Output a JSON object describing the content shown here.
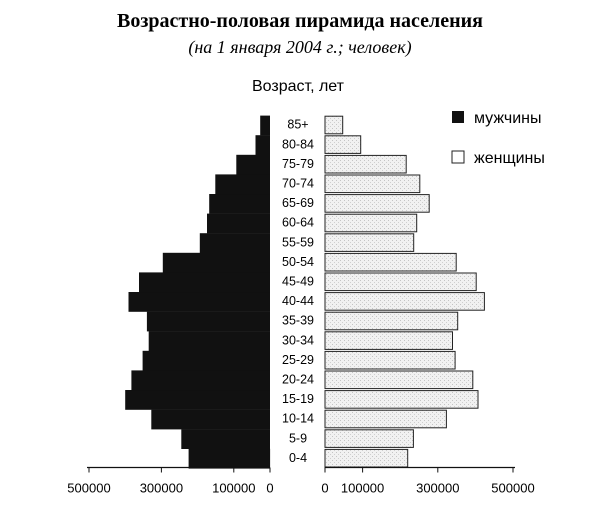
{
  "chart_data": {
    "type": "bar",
    "title": "Возрастно-половая пирамида населения",
    "subtitle": "(на 1 января 2004 г.; человек)",
    "ylabel": "Возраст, лет",
    "categories": [
      "0-4",
      "5-9",
      "10-14",
      "15-19",
      "20-24",
      "25-29",
      "30-34",
      "35-39",
      "40-44",
      "45-49",
      "50-54",
      "55-59",
      "60-64",
      "65-69",
      "70-74",
      "75-79",
      "80-84",
      "85+"
    ],
    "series": [
      {
        "name": "мужчины",
        "color": "#111111",
        "side": "left",
        "values": [
          225000,
          245000,
          328000,
          400000,
          383000,
          352000,
          335000,
          340000,
          391000,
          362000,
          296000,
          194000,
          174000,
          168000,
          151000,
          93000,
          40000,
          27000
        ]
      },
      {
        "name": "женщины",
        "color": "#e9e9e9",
        "side": "right",
        "values": [
          220000,
          235000,
          323000,
          407000,
          393000,
          346000,
          339000,
          353000,
          424000,
          402000,
          349000,
          236000,
          244000,
          277000,
          252000,
          216000,
          95000,
          47000
        ]
      }
    ],
    "left_axis": {
      "ticks": [
        500000,
        300000,
        100000,
        0
      ],
      "tick_labels": [
        "500000",
        "300000",
        "100000",
        "0"
      ],
      "range": [
        0,
        500000
      ]
    },
    "right_axis": {
      "ticks": [
        0,
        100000,
        300000,
        500000
      ],
      "tick_labels": [
        "0",
        "100000",
        "300000",
        "500000"
      ],
      "range": [
        0,
        500000
      ]
    },
    "legend": {
      "placement": "top-right",
      "items": [
        "мужчины",
        "женщины"
      ]
    },
    "grid": false
  }
}
